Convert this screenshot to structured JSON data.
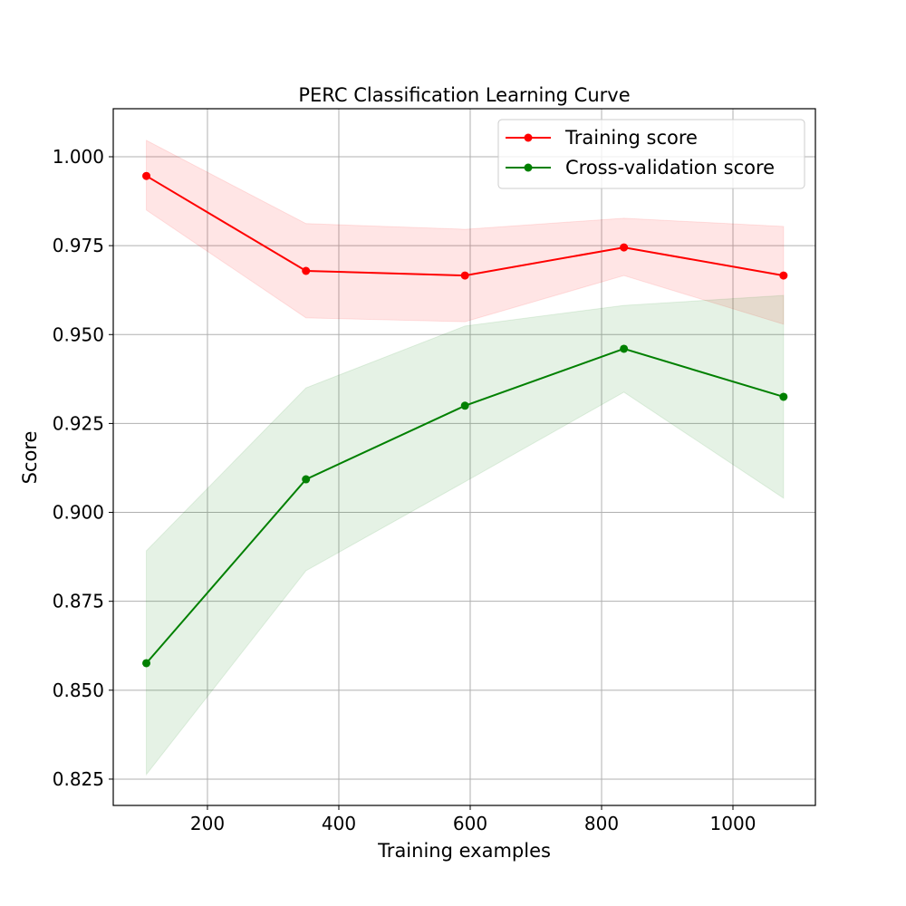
{
  "chart_data": {
    "type": "line",
    "title": "PERC Classification Learning Curve",
    "xlabel": "Training examples",
    "ylabel": "Score",
    "xlim": [
      56.6,
      1125.5
    ],
    "ylim": [
      0.8176,
      1.0135
    ],
    "xticks": [
      200,
      400,
      600,
      800,
      1000
    ],
    "xtick_labels": [
      "200",
      "400",
      "600",
      "800",
      "1000"
    ],
    "yticks": [
      0.825,
      0.85,
      0.875,
      0.9,
      0.925,
      0.95,
      0.975,
      1.0
    ],
    "ytick_labels": [
      "0.825",
      "0.850",
      "0.875",
      "0.900",
      "0.925",
      "0.950",
      "0.975",
      "1.000"
    ],
    "grid": true,
    "legend_position": "top-right",
    "x": [
      107,
      350,
      592,
      834,
      1077
    ],
    "series": [
      {
        "name": "Training score",
        "color": "#ff0000",
        "values": [
          0.9946,
          0.9679,
          0.9666,
          0.9745,
          0.9666
        ],
        "band_upper": [
          1.0046,
          0.9812,
          0.9796,
          0.9827,
          0.9804
        ],
        "band_lower": [
          0.985,
          0.9547,
          0.9536,
          0.9666,
          0.9529
        ]
      },
      {
        "name": "Cross-validation score",
        "color": "#008000",
        "values": [
          0.8576,
          0.9093,
          0.93,
          0.946,
          0.9325
        ],
        "band_upper": [
          0.8892,
          0.935,
          0.9524,
          0.9582,
          0.961
        ],
        "band_lower": [
          0.8263,
          0.8836,
          0.9086,
          0.9338,
          0.904
        ]
      }
    ]
  }
}
